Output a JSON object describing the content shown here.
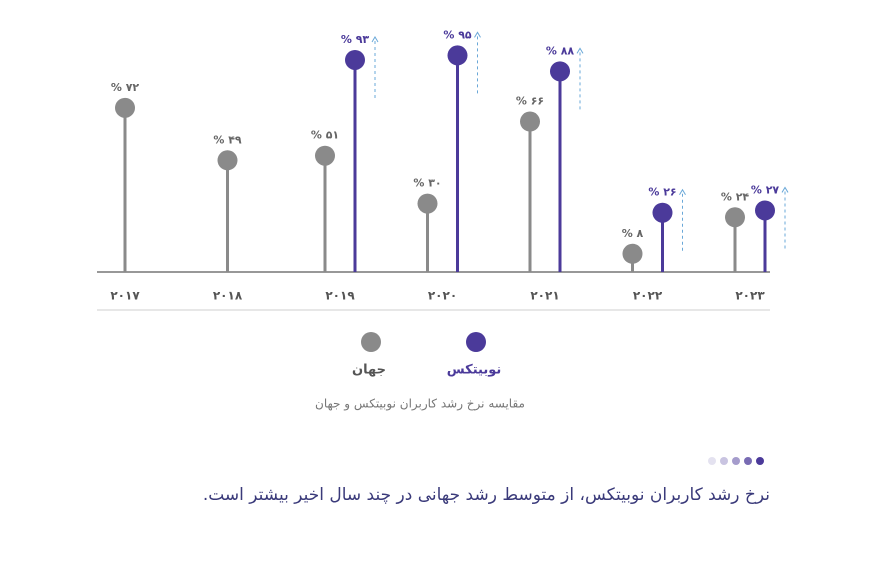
{
  "chart_data": {
    "type": "lollipop",
    "title": "مقایسه نرخ رشد کاربران نوبیتکس و جهان",
    "subtitle": "نرخ رشد کاربران نوبیتکس، از متوسط رشد جهانی در چند سال اخیر بیشتر است.",
    "categories": [
      "۲۰۱۷",
      "۲۰۱۸",
      "۲۰۱۹",
      "۲۰۲۰",
      "۲۰۲۱",
      "۲۰۲۲",
      "۲۰۲۳"
    ],
    "series": [
      {
        "name": "جهان",
        "color": "#8a8a8a",
        "values": [
          72,
          49,
          51,
          30,
          66,
          8,
          24
        ],
        "value_labels": [
          "% ۷۲",
          "% ۴۹",
          "% ۵۱",
          "% ۳۰",
          "% ۶۶",
          "% ۸",
          "% ۲۴"
        ]
      },
      {
        "name": "نوبیتکس",
        "color": "#4b3a9a",
        "values": [
          null,
          null,
          93,
          95,
          88,
          26,
          27
        ],
        "value_labels": [
          null,
          null,
          "% ۹۳",
          "% ۹۵",
          "% ۸۸",
          "% ۲۶",
          "% ۲۷"
        ]
      }
    ],
    "ylim": [
      0,
      100
    ]
  }
}
